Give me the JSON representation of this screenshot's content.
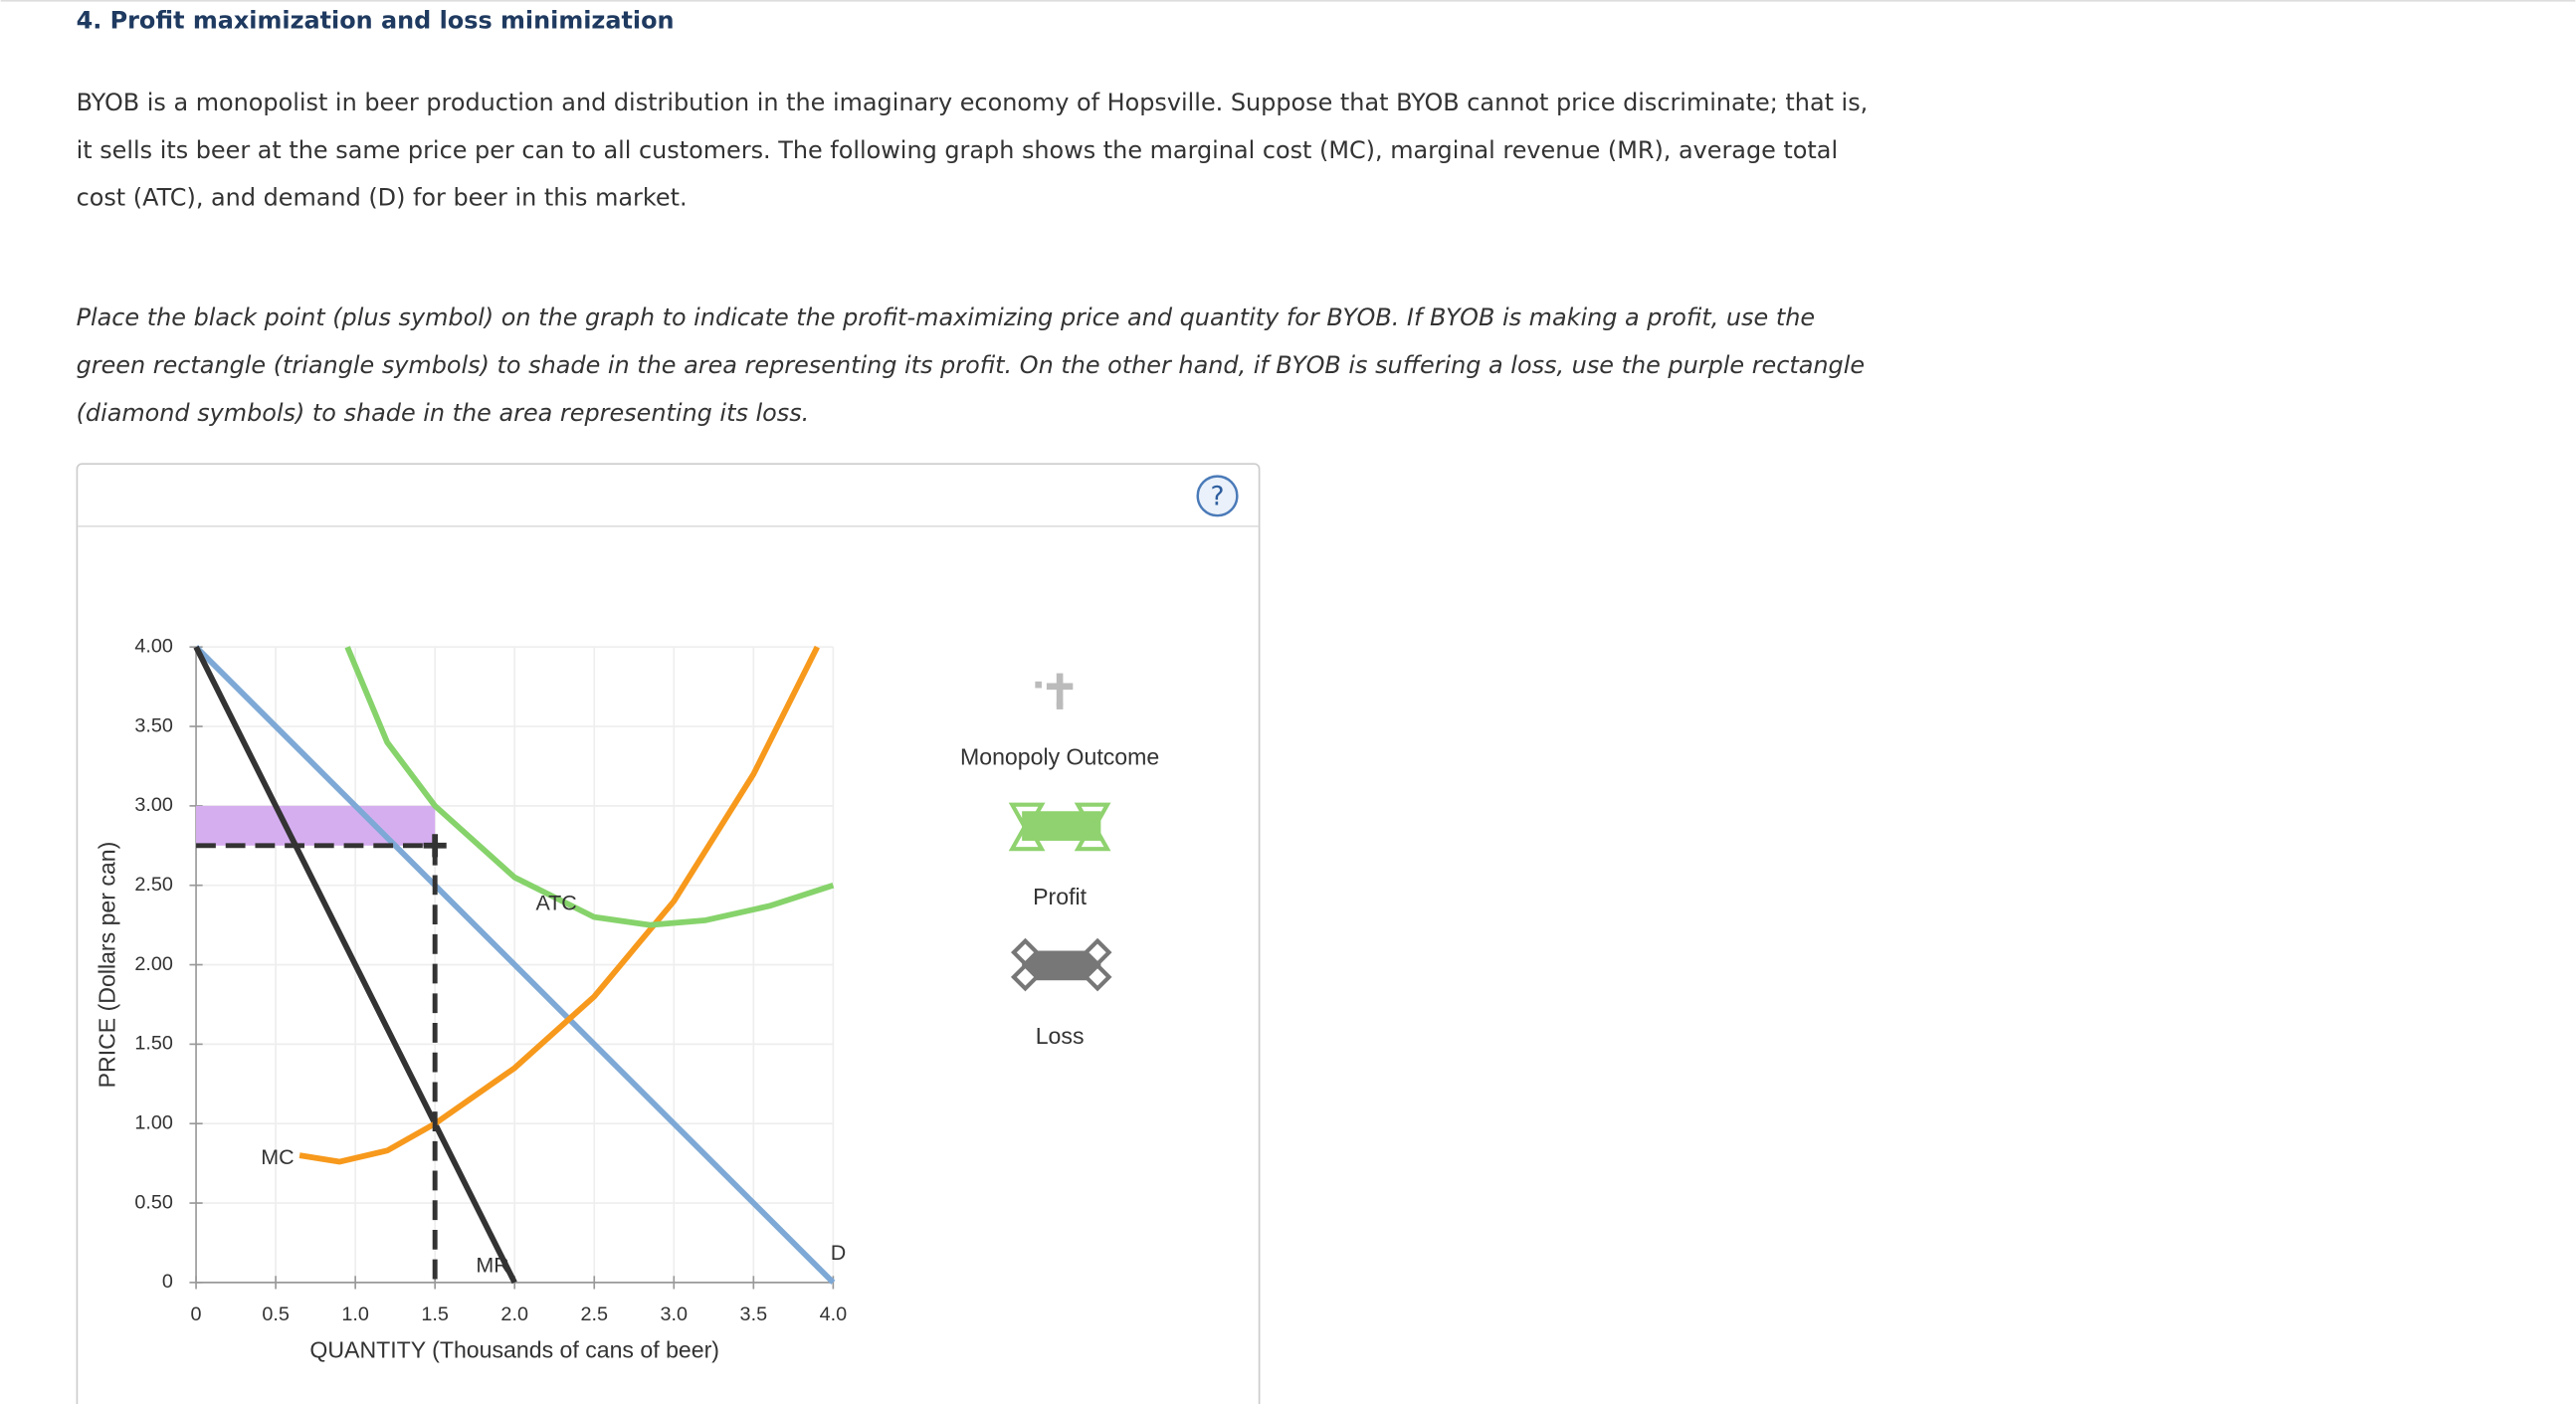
{
  "header": {
    "title": "4. Profit maximization and loss minimization"
  },
  "intro": [
    "BYOB is a monopolist in beer production and distribution in the imaginary economy of Hopsville. Suppose that BYOB cannot price discriminate; that is,",
    "it sells its beer at the same price per can to all customers. The following graph shows the marginal cost (MC), marginal revenue (MR), average total",
    "cost (ATC), and demand (D) for beer in this market."
  ],
  "instructions": [
    "Place the black point (plus symbol) on the graph to indicate the profit-maximizing price and quantity for BYOB. If BYOB is making a profit, use the",
    "green rectangle (triangle symbols) to shade in the area representing its profit. On the other hand, if BYOB is suffering a loss, use the purple rectangle",
    "(diamond symbols) to shade in the area representing its loss."
  ],
  "help_icon": "?",
  "tool_palette": [
    "Monopoly Outcome",
    "Profit",
    "Loss"
  ],
  "chart_data": {
    "type": "line",
    "xlabel": "QUANTITY (Thousands of cans of beer)",
    "ylabel": "PRICE (Dollars per can)",
    "xlim": [
      0,
      4
    ],
    "ylim": [
      0,
      4
    ],
    "xticks": [
      0,
      0.5,
      {
        "value": 1,
        "label": "1.0"
      },
      1.5,
      {
        "value": 2,
        "label": "2.0"
      },
      2.5,
      {
        "value": 3,
        "label": "3.0"
      },
      3.5,
      {
        "value": 4,
        "label": "4.0"
      }
    ],
    "yticks": [
      0,
      {
        "value": 0.5,
        "label": "0.50"
      },
      {
        "value": 1,
        "label": "1.00"
      },
      {
        "value": 1.5,
        "label": "1.50"
      },
      {
        "value": 2,
        "label": "2.00"
      },
      {
        "value": 2.5,
        "label": "2.50"
      },
      {
        "value": 3,
        "label": "3.00"
      },
      {
        "value": 3.5,
        "label": "3.50"
      },
      {
        "value": 4,
        "label": "4.00"
      }
    ],
    "grid": true,
    "series": [
      {
        "name": "D",
        "color": "#7ea9d6",
        "x": [
          0,
          4
        ],
        "values": [
          4,
          0
        ]
      },
      {
        "name": "MR",
        "color": "#333333",
        "x": [
          0,
          2
        ],
        "values": [
          4,
          0
        ]
      },
      {
        "name": "MC",
        "color": "#f7991c",
        "x": [
          0.65,
          0.9,
          1.2,
          1.5,
          2.0,
          2.5,
          3.0,
          3.5,
          3.9
        ],
        "values": [
          0.8,
          0.76,
          0.83,
          1.0,
          1.35,
          1.8,
          2.4,
          3.2,
          4.0
        ]
      },
      {
        "name": "ATC",
        "color": "#86d36b",
        "x": [
          0.95,
          1.2,
          1.5,
          2.0,
          2.5,
          2.85,
          3.2,
          3.6,
          4.0
        ],
        "values": [
          4.0,
          3.4,
          3.0,
          2.55,
          2.3,
          2.25,
          2.28,
          2.37,
          2.5
        ]
      }
    ],
    "monopoly_point": {
      "x": 1.5,
      "y": 2.75,
      "color": "#333333"
    },
    "loss_area": {
      "x": [
        0,
        1.5
      ],
      "y": [
        2.75,
        3.0
      ],
      "color": "#d5aef0"
    }
  }
}
